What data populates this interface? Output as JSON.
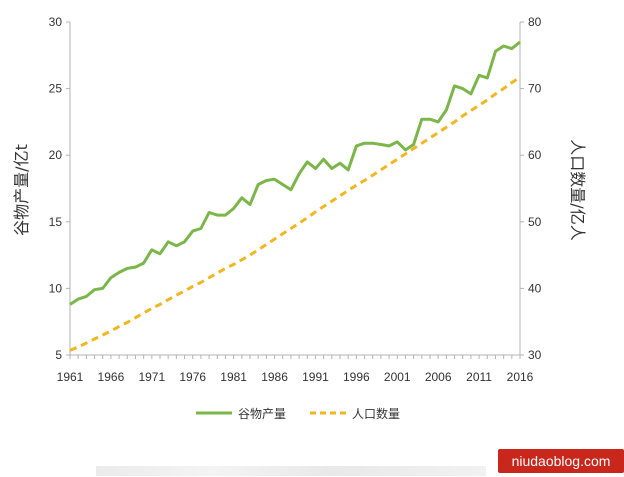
{
  "chart_data": {
    "type": "line",
    "title": "",
    "ylabel": "谷物产量/亿t",
    "y2label": "人口数量/亿人",
    "xlim": [
      1961,
      2016
    ],
    "ylim": [
      5,
      30
    ],
    "y2lim": [
      30,
      80
    ],
    "x_ticks": [
      "1961",
      "1966",
      "1971",
      "1976",
      "1981",
      "1986",
      "1991",
      "1996",
      "2001",
      "2006",
      "2011",
      "2016"
    ],
    "y_ticks": [
      "5",
      "10",
      "15",
      "20",
      "25",
      "30"
    ],
    "y2_ticks": [
      "30",
      "40",
      "50",
      "60",
      "70",
      "80"
    ],
    "grid": false,
    "legend_position": "bottom",
    "x": [
      1961,
      1962,
      1963,
      1964,
      1965,
      1966,
      1967,
      1968,
      1969,
      1970,
      1971,
      1972,
      1973,
      1974,
      1975,
      1976,
      1977,
      1978,
      1979,
      1980,
      1981,
      1982,
      1983,
      1984,
      1985,
      1986,
      1987,
      1988,
      1989,
      1990,
      1991,
      1992,
      1993,
      1994,
      1995,
      1996,
      1997,
      1998,
      1999,
      2000,
      2001,
      2002,
      2003,
      2004,
      2005,
      2006,
      2007,
      2008,
      2009,
      2010,
      2011,
      2012,
      2013,
      2014,
      2015,
      2016
    ],
    "series": [
      {
        "name": "谷物产量",
        "axis": "left",
        "color": "#7ab648",
        "style": "solid",
        "values": [
          8.8,
          9.2,
          9.4,
          9.9,
          10.0,
          10.8,
          11.2,
          11.5,
          11.6,
          11.9,
          12.9,
          12.6,
          13.5,
          13.2,
          13.5,
          14.3,
          14.5,
          15.7,
          15.5,
          15.5,
          16.0,
          16.8,
          16.3,
          17.8,
          18.1,
          18.2,
          17.8,
          17.4,
          18.6,
          19.5,
          19.0,
          19.7,
          19.0,
          19.4,
          18.9,
          20.7,
          20.9,
          20.9,
          20.8,
          20.7,
          21.0,
          20.4,
          20.8,
          22.7,
          22.7,
          22.5,
          23.4,
          25.2,
          25.0,
          24.6,
          26.0,
          25.8,
          27.8,
          28.2,
          28.0,
          28.5
        ]
      },
      {
        "name": "人口数量",
        "axis": "right",
        "color": "#f2b61f",
        "style": "dashed",
        "values": [
          30.7,
          31.2,
          31.8,
          32.4,
          33.0,
          33.6,
          34.3,
          34.9,
          35.6,
          36.3,
          37.0,
          37.6,
          38.3,
          39.0,
          39.6,
          40.3,
          40.9,
          41.6,
          42.3,
          43.0,
          43.6,
          44.3,
          45.0,
          45.8,
          46.6,
          47.4,
          48.2,
          49.0,
          49.8,
          50.6,
          51.5,
          52.3,
          53.1,
          53.9,
          54.7,
          55.5,
          56.2,
          57.0,
          57.8,
          58.6,
          59.4,
          60.2,
          61.0,
          61.8,
          62.6,
          63.4,
          64.2,
          65.0,
          65.9,
          66.7,
          67.5,
          68.3,
          69.2,
          70.0,
          70.9,
          71.7
        ]
      }
    ]
  },
  "watermark": "niudaoblog.com"
}
